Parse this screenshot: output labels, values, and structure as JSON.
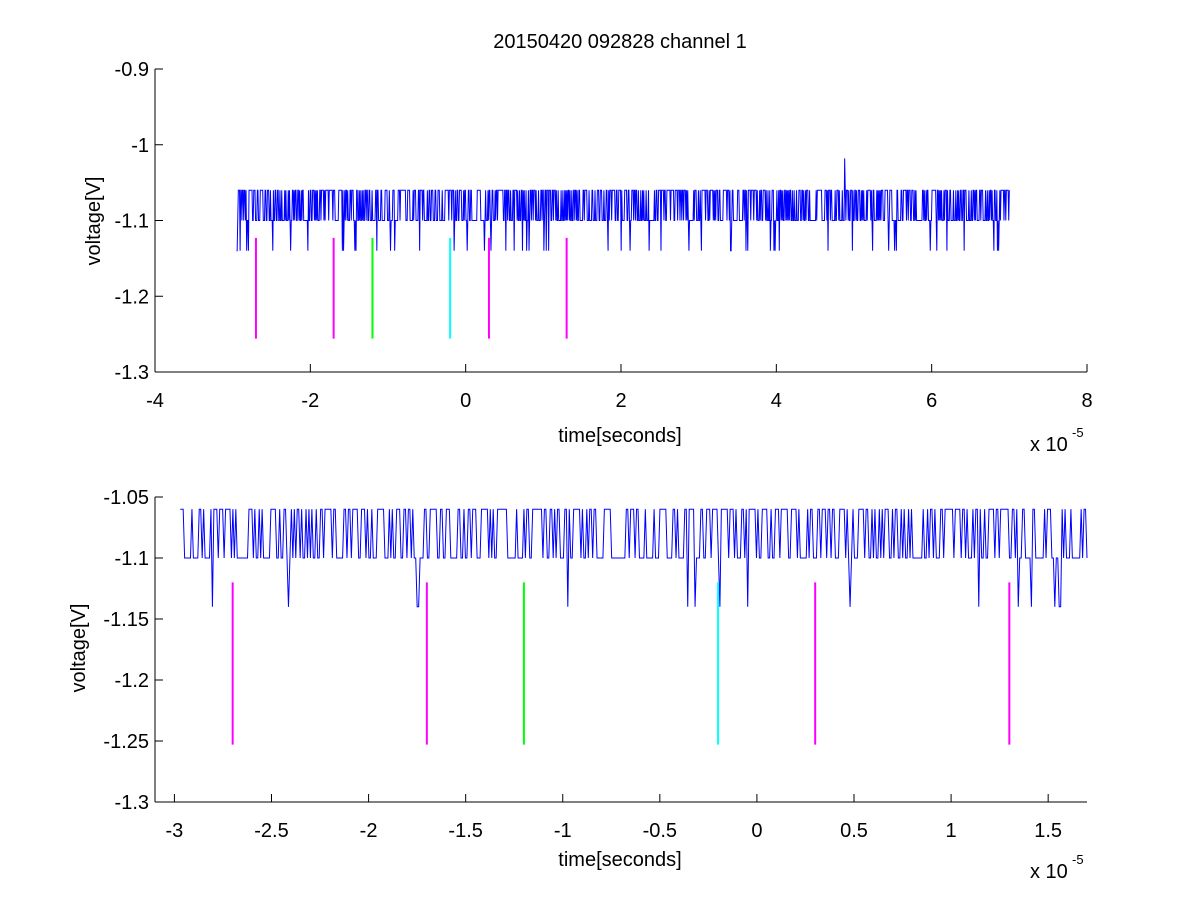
{
  "figure": {
    "title": "20150420 092828 channel 1",
    "exponent_base": "x 10",
    "exponent_power": "-5"
  },
  "chart_data": [
    {
      "type": "line",
      "title": "20150420 092828 channel 1",
      "xlabel": "time[seconds]",
      "ylabel": "voltage[V]",
      "x_scale_note": "x 10^-5",
      "xlim": [
        -4,
        8
      ],
      "ylim": [
        -1.3,
        -0.9
      ],
      "xticks": [
        -4,
        -2,
        0,
        2,
        4,
        6,
        8
      ],
      "xtick_labels": [
        "-4",
        "-2",
        "0",
        "2",
        "4",
        "6",
        "8"
      ],
      "yticks": [
        -1.3,
        -1.2,
        -1.1,
        -1,
        -0.9
      ],
      "ytick_labels": [
        "-1.3",
        "-1.2",
        "-1.1",
        "-1",
        "-0.9"
      ],
      "grid": false,
      "series": [
        {
          "color": "#0000ff",
          "x_start": -2.95,
          "x_end": 7.0,
          "baseline": -1.1,
          "levels": [
            -1.06,
            -1.1,
            -1.14
          ],
          "peak": {
            "x": 4.88,
            "y": -1.018
          },
          "description": "noisy trace switching between about -1.06 V and -1.10 V with occasional dips to -1.14 V"
        }
      ],
      "markers": [
        {
          "x": -2.7,
          "y_top": -1.123,
          "y_bottom": -1.256,
          "color": "#ff00ff"
        },
        {
          "x": -1.7,
          "y_top": -1.123,
          "y_bottom": -1.256,
          "color": "#ff00ff"
        },
        {
          "x": -1.2,
          "y_top": -1.123,
          "y_bottom": -1.256,
          "color": "#00ff00"
        },
        {
          "x": -0.2,
          "y_top": -1.123,
          "y_bottom": -1.256,
          "color": "#00ffff"
        },
        {
          "x": 0.3,
          "y_top": -1.123,
          "y_bottom": -1.256,
          "color": "#ff00ff"
        },
        {
          "x": 1.3,
          "y_top": -1.123,
          "y_bottom": -1.256,
          "color": "#ff00ff"
        }
      ]
    },
    {
      "type": "line",
      "title": "",
      "xlabel": "time[seconds]",
      "ylabel": "voltage[V]",
      "x_scale_note": "x 10^-5",
      "xlim": [
        -3.1,
        1.7
      ],
      "ylim": [
        -1.3,
        -1.05
      ],
      "xticks": [
        -3,
        -2.5,
        -2,
        -1.5,
        -1,
        -0.5,
        0,
        0.5,
        1,
        1.5
      ],
      "xtick_labels": [
        "-3",
        "-2.5",
        "-2",
        "-1.5",
        "-1",
        "-0.5",
        "0",
        "0.5",
        "1",
        "1.5"
      ],
      "yticks": [
        -1.3,
        -1.25,
        -1.2,
        -1.15,
        -1.1,
        -1.05
      ],
      "ytick_labels": [
        "-1.3",
        "-1.25",
        "-1.2",
        "-1.15",
        "-1.1",
        "-1.05"
      ],
      "grid": false,
      "series": [
        {
          "color": "#0000ff",
          "x_start": -2.97,
          "x_end": 1.7,
          "baseline": -1.1,
          "levels": [
            -1.06,
            -1.1,
            -1.14
          ],
          "description": "zoomed view of the same trace, switching between -1.06 V and -1.10 V with dips to about -1.14 V"
        }
      ],
      "markers": [
        {
          "x": -2.7,
          "y_top": -1.12,
          "y_bottom": -1.253,
          "color": "#ff00ff"
        },
        {
          "x": -1.7,
          "y_top": -1.12,
          "y_bottom": -1.253,
          "color": "#ff00ff"
        },
        {
          "x": -1.2,
          "y_top": -1.12,
          "y_bottom": -1.253,
          "color": "#00ff00"
        },
        {
          "x": -0.2,
          "y_top": -1.12,
          "y_bottom": -1.253,
          "color": "#00ffff"
        },
        {
          "x": 0.3,
          "y_top": -1.12,
          "y_bottom": -1.253,
          "color": "#ff00ff"
        },
        {
          "x": 1.3,
          "y_top": -1.12,
          "y_bottom": -1.253,
          "color": "#ff00ff"
        }
      ]
    }
  ]
}
